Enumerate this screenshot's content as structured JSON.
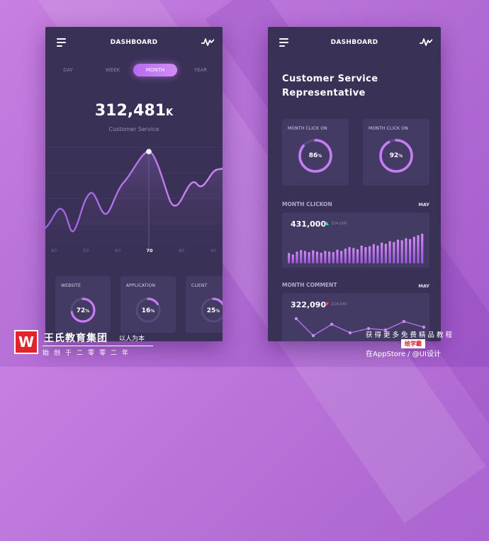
{
  "left_phone": {
    "header_title": "DASHBOARD",
    "tabs": [
      "DAY",
      "WEEK",
      "MONTH",
      "YEAR"
    ],
    "active_tab": "MONTH",
    "big_value": "312,481",
    "big_unit": "K",
    "big_label": "Customer Service",
    "x_labels": [
      "40",
      "50",
      "60",
      "70",
      "80",
      "90"
    ],
    "active_x": "70",
    "cards": [
      {
        "title": "WEBSITE",
        "value": "72",
        "unit": "%",
        "percent": 72
      },
      {
        "title": "APPLICATION",
        "value": "16",
        "unit": "%",
        "percent": 16
      },
      {
        "title": "CLIENT",
        "value": "25",
        "unit": "%",
        "percent": 25
      }
    ]
  },
  "right_phone": {
    "header_title": "DASHBOARD",
    "title_line1": "Customer Service",
    "title_line2": "Representative",
    "cards": [
      {
        "title": "MONTH CLICK ON",
        "value": "86",
        "unit": "%",
        "percent": 86
      },
      {
        "title": "MONTH CLICK ON",
        "value": "92",
        "unit": "%",
        "percent": 92
      }
    ],
    "clickon": {
      "label": "MONTH CLICKON",
      "period": "MAY",
      "value": "431,000",
      "delta": "324,000",
      "bars": [
        0.35,
        0.3,
        0.4,
        0.45,
        0.42,
        0.38,
        0.44,
        0.4,
        0.36,
        0.42,
        0.4,
        0.38,
        0.46,
        0.42,
        0.5,
        0.55,
        0.52,
        0.48,
        0.6,
        0.55,
        0.58,
        0.65,
        0.6,
        0.7,
        0.66,
        0.75,
        0.72,
        0.8,
        0.78,
        0.85,
        0.82,
        0.9,
        0.95,
        1.0
      ]
    },
    "comment": {
      "label": "MONTH COMMENT",
      "period": "MAY",
      "value": "322,090",
      "delta": "214,040"
    }
  },
  "watermark": {
    "logo_letter": "W",
    "main": "王氏教育集团",
    "slogan": "以人为本",
    "sub": "始创于二零零二年",
    "right_line1": "获得更多免费精品教程",
    "right_badge": "绘学霸",
    "right_line3": "在AppStore / @UI设计"
  },
  "colors": {
    "accent": "#c77bf5",
    "panel": "#3a3157",
    "card": "#443b65",
    "up": "#3fd49b",
    "down": "#f04a5e"
  }
}
